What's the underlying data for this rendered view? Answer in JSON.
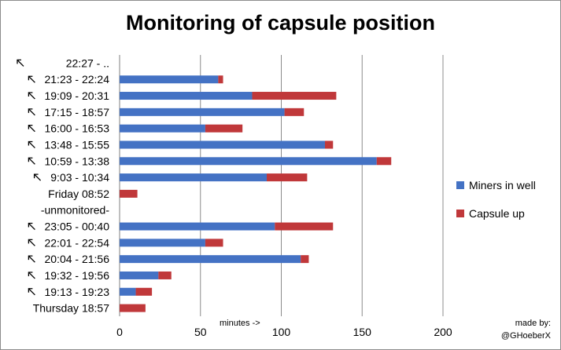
{
  "chart_data": {
    "type": "bar",
    "orientation": "horizontal",
    "stacked": true,
    "title": "Monitoring of capsule position",
    "categories": [
      "22:27 -      ..",
      "21:23 - 22:24",
      "19:09 - 20:31",
      "17:15 - 18:57",
      "16:00 - 16:53",
      "13:48 - 15:55",
      "10:59 - 13:38",
      "9:03 - 10:34",
      "Friday 08:52",
      "-unmonitored-",
      "23:05 - 00:40",
      "22:01 - 22:54",
      "20:04 - 21:56",
      "19:32 - 19:56",
      "19:13 - 19:23",
      "Thursday 18:57"
    ],
    "arrow_marker": [
      true,
      true,
      true,
      true,
      true,
      true,
      true,
      true,
      false,
      false,
      true,
      true,
      true,
      true,
      true,
      false
    ],
    "series": [
      {
        "name": "Miners in well",
        "color": "#4472c4",
        "values": [
          0,
          61,
          82,
          102,
          53,
          127,
          159,
          91,
          0,
          0,
          96,
          53,
          112,
          24,
          10,
          0
        ]
      },
      {
        "name": "Capsule up",
        "color": "#c0383a",
        "values": [
          0,
          3,
          52,
          12,
          23,
          5,
          9,
          25,
          11,
          0,
          36,
          11,
          5,
          8,
          10,
          16
        ]
      }
    ],
    "xlim": [
      0,
      200
    ],
    "xticks": [
      0,
      50,
      100,
      150,
      200
    ],
    "xlabel": "minutes ->",
    "grid": true,
    "legend_position": "right"
  },
  "credit": {
    "line1": "made by:",
    "line2": "@GHoeberX"
  }
}
